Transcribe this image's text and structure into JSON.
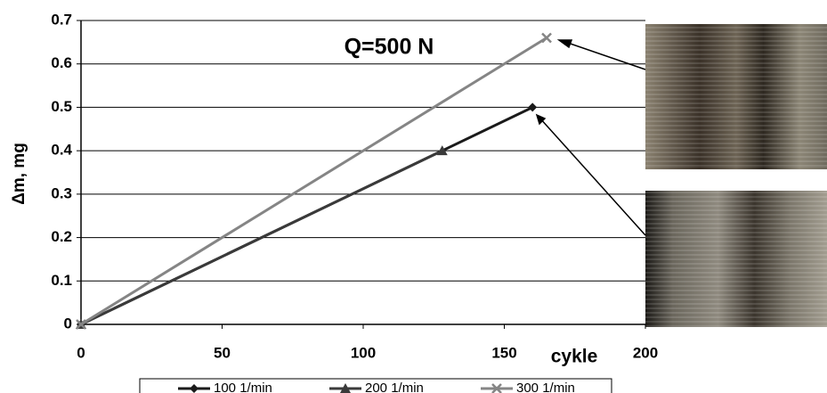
{
  "chart_data": {
    "type": "line",
    "annotation": "Q=500 N",
    "x_label": "cykle",
    "y_label": "Δm, mg",
    "xlim": [
      0,
      200
    ],
    "xticks": [
      0,
      50,
      100,
      150,
      200
    ],
    "ylim": [
      0,
      0.7
    ],
    "yticks": [
      0,
      0.1,
      0.2,
      0.3,
      0.4,
      0.5,
      0.6,
      0.7
    ],
    "grid": true,
    "legend": "bottom",
    "series": [
      {
        "name": "100 1/min",
        "color": "#1a1a1a",
        "marker": "diamond",
        "x": [
          0,
          160
        ],
        "values": [
          0,
          0.5
        ]
      },
      {
        "name": "200 1/min",
        "color": "#3a3a3a",
        "marker": "triangle",
        "x": [
          0,
          128
        ],
        "values": [
          0,
          0.4
        ]
      },
      {
        "name": "300 1/min",
        "color": "#858585",
        "marker": "cross",
        "x": [
          0,
          165
        ],
        "values": [
          0,
          0.66
        ]
      }
    ]
  }
}
